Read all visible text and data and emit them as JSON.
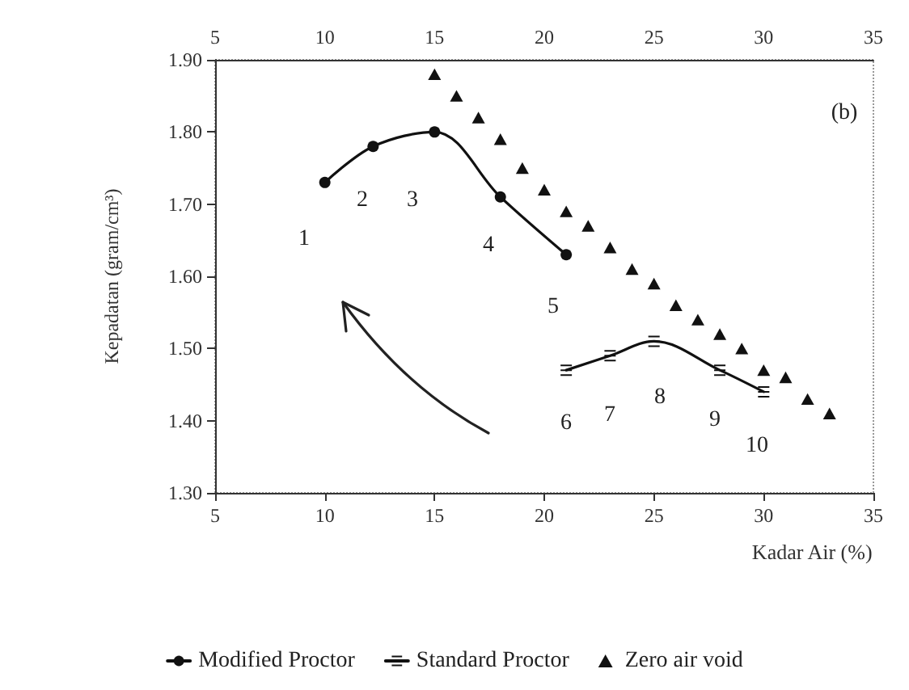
{
  "chart_data": {
    "type": "line",
    "xlabel": "Kadar Air (%)",
    "ylabel": "Kepadatan (gram/cm³)",
    "xlim": [
      5,
      35
    ],
    "xticks": [
      5,
      10,
      15,
      20,
      25,
      30,
      35
    ],
    "x2lim": [
      5,
      35
    ],
    "x2ticks": [
      5,
      10,
      15,
      20,
      25,
      30,
      35
    ],
    "ylim": [
      1.3,
      1.9
    ],
    "yticks": [
      {
        "value": 1.3,
        "label": "1.30"
      },
      {
        "value": 1.4,
        "label": "1.40"
      },
      {
        "value": 1.5,
        "label": "1.50"
      },
      {
        "value": 1.6,
        "label": "1.60"
      },
      {
        "value": 1.7,
        "label": "1.70"
      },
      {
        "value": 1.8,
        "label": "1.80"
      },
      {
        "value": 1.9,
        "label": "1.90"
      }
    ],
    "grid": false,
    "legend": "bottom",
    "marker": "circle",
    "line_style": "solid",
    "series": [
      {
        "name": "Modified Proctor",
        "color": "#111111",
        "x": [
          10,
          12.2,
          15,
          18,
          21
        ],
        "values": [
          1.73,
          1.78,
          1.8,
          1.71,
          1.63
        ]
      },
      {
        "name": "Standard Proctor",
        "color": "#111111",
        "marker": "cross",
        "x": [
          21,
          23,
          25,
          28,
          30
        ],
        "values": [
          1.47,
          1.49,
          1.51,
          1.47,
          1.44
        ]
      },
      {
        "name": "Zero air void",
        "type": "scatter",
        "marker": "triangle",
        "color": "#111111",
        "x": [
          15,
          16,
          17,
          18,
          19,
          20,
          21,
          22,
          23,
          24,
          25,
          26,
          27,
          28,
          29,
          30,
          31,
          32,
          33
        ],
        "values": [
          1.88,
          1.85,
          1.82,
          1.79,
          1.75,
          1.72,
          1.69,
          1.67,
          1.64,
          1.61,
          1.59,
          1.56,
          1.54,
          1.52,
          1.5,
          1.47,
          1.46,
          1.43,
          1.41
        ]
      }
    ],
    "annotations": [
      "(b)",
      "1",
      "2",
      "3",
      "4",
      "5",
      "6",
      "7",
      "8",
      "9",
      "10"
    ]
  }
}
